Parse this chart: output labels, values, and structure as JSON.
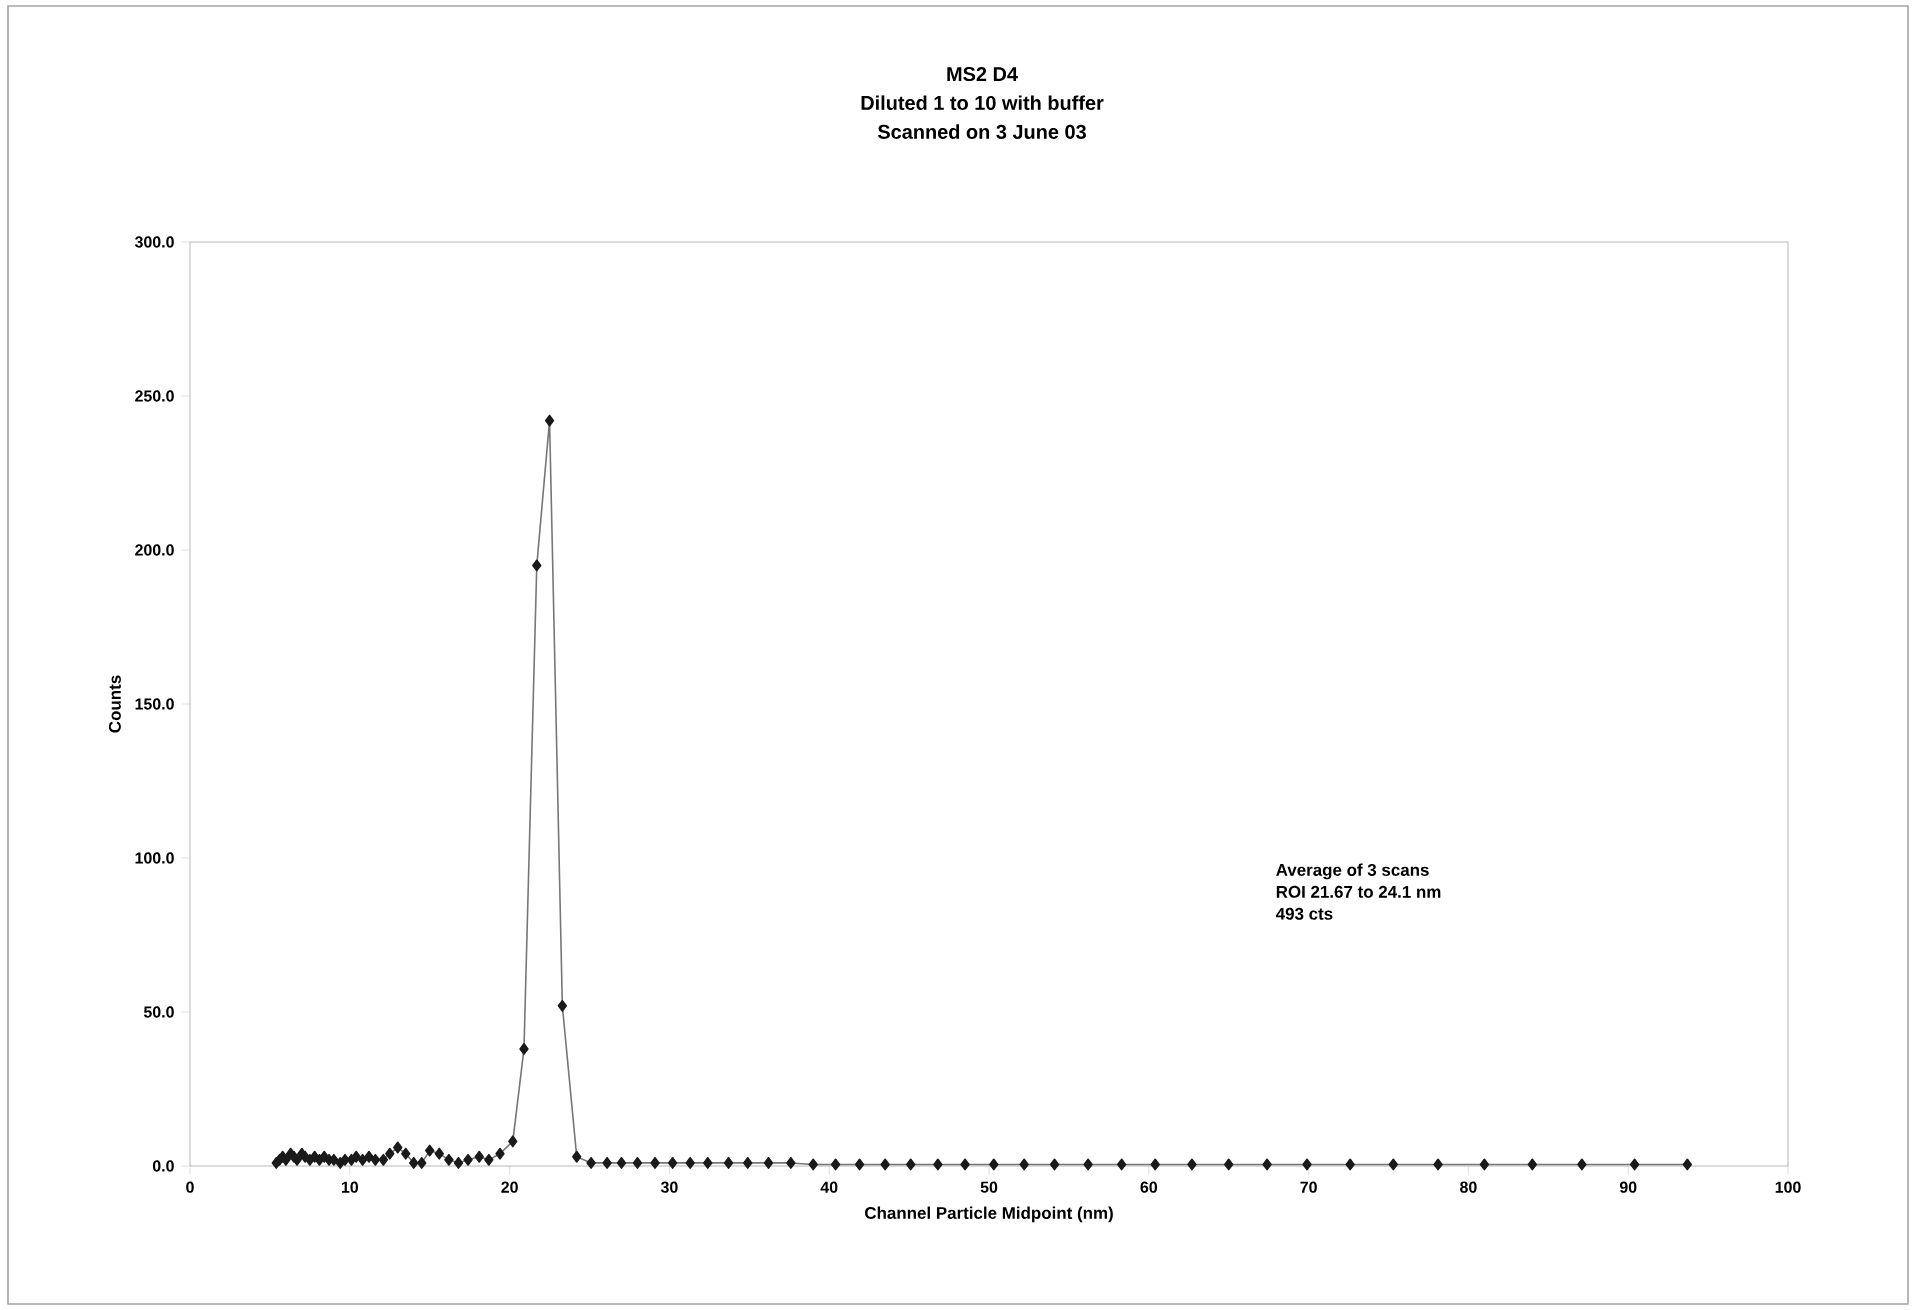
{
  "chart_data": {
    "type": "line",
    "title": "MS2 D4",
    "subtitle": "Diluted 1 to 10 with buffer",
    "annotations": [
      "Scanned on 3 June 03",
      "Average of 3 scans",
      "ROI 21.67 to 24.1 nm",
      "493 cts"
    ],
    "xlabel": "Channel Particle Midpoint (nm)",
    "ylabel": "Counts",
    "x": [
      5.4,
      5.6,
      5.8,
      6.0,
      6.3,
      6.5,
      6.7,
      7.0,
      7.2,
      7.5,
      7.8,
      8.1,
      8.4,
      8.7,
      9.0,
      9.4,
      9.7,
      10.1,
      10.4,
      10.8,
      11.2,
      11.6,
      12.1,
      12.5,
      13.0,
      13.5,
      14.0,
      14.5,
      15.0,
      15.6,
      16.2,
      16.8,
      17.4,
      18.1,
      18.7,
      19.4,
      20.2,
      20.9,
      21.7,
      22.5,
      23.3,
      24.2,
      25.1,
      26.1,
      27.0,
      28.0,
      29.1,
      30.2,
      31.3,
      32.4,
      33.7,
      34.9,
      36.2,
      37.6,
      39.0,
      40.4,
      41.9,
      43.5,
      45.1,
      46.8,
      48.5,
      50.3,
      52.2,
      54.1,
      56.2,
      58.3,
      60.4,
      62.7,
      65.0,
      67.4,
      69.9,
      72.6,
      75.3,
      78.1,
      81.0,
      84.0,
      87.1,
      90.4,
      93.7
    ],
    "series": [
      {
        "color": "#1a1a1a",
        "values": [
          1,
          2,
          3,
          2,
          4,
          3,
          2,
          4,
          3,
          2,
          3,
          2,
          3,
          2,
          2,
          1,
          2,
          2,
          3,
          2,
          3,
          2,
          2,
          4,
          6,
          4,
          1,
          1,
          5,
          4,
          2,
          1,
          2,
          3,
          2,
          4,
          8,
          38,
          195,
          242,
          52,
          3,
          1,
          1,
          1,
          1,
          1,
          1,
          1,
          1,
          1,
          1,
          1,
          1,
          0.5,
          0.5,
          0.5,
          0.5,
          0.5,
          0.5,
          0.5,
          0.5,
          0.5,
          0.5,
          0.5,
          0.5,
          0.5,
          0.5,
          0.5,
          0.5,
          0.5,
          0.5,
          0.5,
          0.5,
          0.5,
          0.5,
          0.5,
          0.5,
          0.5
        ]
      }
    ],
    "xlim": [
      0,
      100
    ],
    "ylim": [
      0,
      300
    ],
    "xticks": [
      0,
      10,
      20,
      30,
      40,
      50,
      60,
      70,
      80,
      90,
      100
    ],
    "yticks": [
      {
        "value": 0,
        "label": "0.0"
      },
      {
        "value": 50,
        "label": "50.0"
      },
      {
        "value": 100,
        "label": "100.0"
      },
      {
        "value": 150,
        "label": "150.0"
      },
      {
        "value": 200,
        "label": "200.0"
      },
      {
        "value": 250,
        "label": "250.0"
      },
      {
        "value": 300,
        "label": "300.0"
      }
    ],
    "grid": false,
    "marker": "diamond",
    "line_style": "solid"
  }
}
